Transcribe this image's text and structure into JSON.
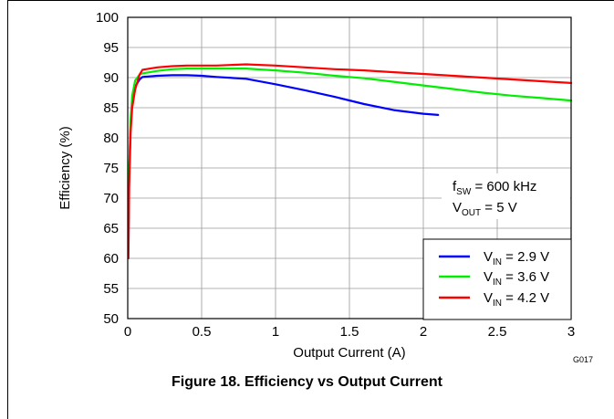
{
  "figure": {
    "caption": "Figure 18. Efficiency vs Output Current",
    "figure_id": "G017"
  },
  "chart_data": {
    "type": "line",
    "xlabel": "Output Current (A)",
    "ylabel": "Efficiency (%)",
    "xlim": [
      0,
      3
    ],
    "ylim": [
      50,
      100
    ],
    "xticks": [
      "0",
      "0.5",
      "1",
      "1.5",
      "2",
      "2.5",
      "3"
    ],
    "yticks": [
      "50",
      "55",
      "60",
      "65",
      "70",
      "75",
      "80",
      "85",
      "90",
      "95",
      "100"
    ],
    "grid": true,
    "legend_position": "bottom-right",
    "annotation": {
      "line1": {
        "main": "f",
        "sub": "SW",
        "rest": " = 600 kHz"
      },
      "line2": {
        "main": "V",
        "sub": "OUT",
        "rest": " = 5 V"
      }
    },
    "series": [
      {
        "label": {
          "main": "V",
          "sub": "IN",
          "rest": " = 2.9 V"
        },
        "color": "#0000ff",
        "x": [
          0.005,
          0.01,
          0.02,
          0.03,
          0.05,
          0.08,
          0.1,
          0.2,
          0.3,
          0.4,
          0.5,
          0.6,
          0.8,
          1.0,
          1.2,
          1.4,
          1.6,
          1.8,
          2.0,
          2.1
        ],
        "y": [
          62,
          74,
          82,
          86,
          88.5,
          89.7,
          90.1,
          90.3,
          90.4,
          90.4,
          90.3,
          90.1,
          89.8,
          88.9,
          87.9,
          86.8,
          85.6,
          84.6,
          84.0,
          83.8
        ]
      },
      {
        "label": {
          "main": "V",
          "sub": "IN",
          "rest": " = 3.6 V"
        },
        "color": "#00ee00",
        "x": [
          0.005,
          0.01,
          0.02,
          0.03,
          0.05,
          0.08,
          0.1,
          0.2,
          0.3,
          0.4,
          0.5,
          0.6,
          0.8,
          1.0,
          1.2,
          1.4,
          1.6,
          1.8,
          2.0,
          2.2,
          2.4,
          2.6,
          2.8,
          3.0
        ],
        "y": [
          63,
          75,
          83,
          87,
          89.5,
          90.5,
          90.7,
          91.1,
          91.4,
          91.5,
          91.5,
          91.5,
          91.5,
          91.2,
          90.8,
          90.3,
          89.9,
          89.3,
          88.7,
          88.1,
          87.5,
          87.0,
          86.6,
          86.2
        ]
      },
      {
        "label": {
          "main": "V",
          "sub": "IN",
          "rest": " = 4.2 V"
        },
        "color": "#ff0000",
        "x": [
          0.005,
          0.01,
          0.02,
          0.03,
          0.05,
          0.08,
          0.1,
          0.2,
          0.3,
          0.4,
          0.5,
          0.6,
          0.8,
          1.0,
          1.2,
          1.4,
          1.6,
          1.8,
          2.0,
          2.2,
          2.4,
          2.6,
          2.8,
          3.0
        ],
        "y": [
          60,
          72,
          81,
          85,
          88,
          90.5,
          91.3,
          91.7,
          91.9,
          92.0,
          92.0,
          92.0,
          92.2,
          92.0,
          91.7,
          91.4,
          91.2,
          90.9,
          90.6,
          90.3,
          90.0,
          89.7,
          89.4,
          89.1
        ]
      }
    ]
  }
}
